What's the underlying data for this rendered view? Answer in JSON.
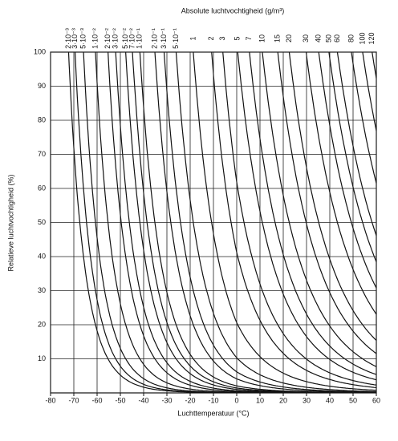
{
  "chart_data": {
    "type": "isoline",
    "title": "Absolute luchtvochtigheid (g/m³)",
    "x_label": "Luchttemperatuur (°C)",
    "y_label": "Relatieve luchtvochtigheid (%)",
    "xlim": [
      -80,
      60
    ],
    "ylim": [
      0,
      100
    ],
    "xticks": [
      -80,
      -70,
      -60,
      -50,
      -40,
      -30,
      -20,
      -10,
      0,
      10,
      20,
      30,
      40,
      50,
      60
    ],
    "yticks": [
      10,
      20,
      30,
      40,
      50,
      60,
      70,
      80,
      90,
      100
    ],
    "grid": true,
    "color": "#111111",
    "curves": [
      {
        "label": "2·10⁻³",
        "value": 0.002
      },
      {
        "label": "3·10⁻³",
        "value": 0.003
      },
      {
        "label": "5·10⁻³",
        "value": 0.005
      },
      {
        "label": "1·10⁻²",
        "value": 0.01
      },
      {
        "label": "2·10⁻²",
        "value": 0.02
      },
      {
        "label": "3·10⁻²",
        "value": 0.03
      },
      {
        "label": "5·10⁻²",
        "value": 0.05
      },
      {
        "label": "7·10⁻²",
        "value": 0.07
      },
      {
        "label": "1·10⁻¹",
        "value": 0.1
      },
      {
        "label": "2·10⁻¹",
        "value": 0.2
      },
      {
        "label": "3·10⁻¹",
        "value": 0.3
      },
      {
        "label": "5·10⁻¹",
        "value": 0.5
      },
      {
        "label": "1",
        "value": 1
      },
      {
        "label": "2",
        "value": 2
      },
      {
        "label": "3",
        "value": 3
      },
      {
        "label": "5",
        "value": 5
      },
      {
        "label": "7",
        "value": 7
      },
      {
        "label": "10",
        "value": 10
      },
      {
        "label": "15",
        "value": 15
      },
      {
        "label": "20",
        "value": 20
      },
      {
        "label": "30",
        "value": 30
      },
      {
        "label": "40",
        "value": 40
      },
      {
        "label": "50",
        "value": 50
      },
      {
        "label": "60",
        "value": 60
      },
      {
        "label": "80",
        "value": 80
      },
      {
        "label": "100",
        "value": 100
      },
      {
        "label": "120",
        "value": 120
      }
    ]
  }
}
